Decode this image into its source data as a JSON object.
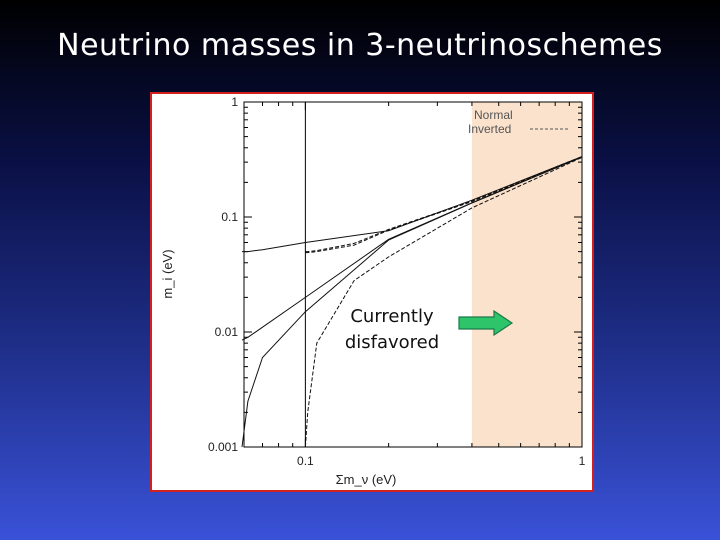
{
  "slide": {
    "title": "Neutrino masses in 3-neutrinoschemes"
  },
  "chart_data": {
    "type": "line",
    "xlabel": "Σm_ν (eV)",
    "ylabel": "m_i (eV)",
    "x_scale": "log",
    "y_scale": "log",
    "xlim": [
      0.06,
      1
    ],
    "ylim": [
      0.001,
      1
    ],
    "x_tick_labels": [
      "0.1",
      "1"
    ],
    "y_tick_labels": [
      "1",
      "0.1",
      "0.01",
      "0.001"
    ],
    "legend": {
      "placement": "top-right",
      "entries": [
        {
          "name": "Normal",
          "style": "solid"
        },
        {
          "name": "Inverted",
          "style": "dashed"
        }
      ]
    },
    "shaded_region": {
      "x_from": 0.4,
      "x_to": 1,
      "color": "#fbe2cc"
    },
    "vertical_line_x": 0.1,
    "series": [
      {
        "name": "Normal",
        "x": [
          0.059,
          0.062,
          0.07,
          0.1,
          0.2,
          0.4,
          1.0
        ],
        "y": [
          0.001,
          0.0025,
          0.006,
          0.015,
          0.063,
          0.132,
          0.333
        ]
      },
      {
        "name": "Normal",
        "x": [
          0.059,
          0.062,
          0.07,
          0.1,
          0.2,
          0.4,
          1.0
        ],
        "y": [
          0.0085,
          0.009,
          0.011,
          0.02,
          0.064,
          0.133,
          0.333
        ]
      },
      {
        "name": "Normal",
        "x": [
          0.059,
          0.062,
          0.07,
          0.1,
          0.2,
          0.4,
          1.0
        ],
        "y": [
          0.05,
          0.05,
          0.052,
          0.06,
          0.076,
          0.14,
          0.335
        ]
      },
      {
        "name": "Inverted",
        "x": [
          0.1,
          0.102,
          0.11,
          0.15,
          0.2,
          0.4,
          1.0
        ],
        "y": [
          0.001,
          0.002,
          0.008,
          0.028,
          0.045,
          0.12,
          0.33
        ]
      },
      {
        "name": "Inverted",
        "x": [
          0.1,
          0.102,
          0.11,
          0.15,
          0.2,
          0.4,
          1.0
        ],
        "y": [
          0.049,
          0.049,
          0.05,
          0.057,
          0.077,
          0.136,
          0.334
        ]
      },
      {
        "name": "Inverted",
        "x": [
          0.1,
          0.102,
          0.11,
          0.15,
          0.2,
          0.4,
          1.0
        ],
        "y": [
          0.05,
          0.05,
          0.051,
          0.059,
          0.078,
          0.138,
          0.336
        ]
      }
    ],
    "annotation": {
      "line1": "Currently",
      "line2": "disfavored",
      "arrow_color": "#2dc46a",
      "arrow_outline": "#1a7a4a"
    }
  }
}
